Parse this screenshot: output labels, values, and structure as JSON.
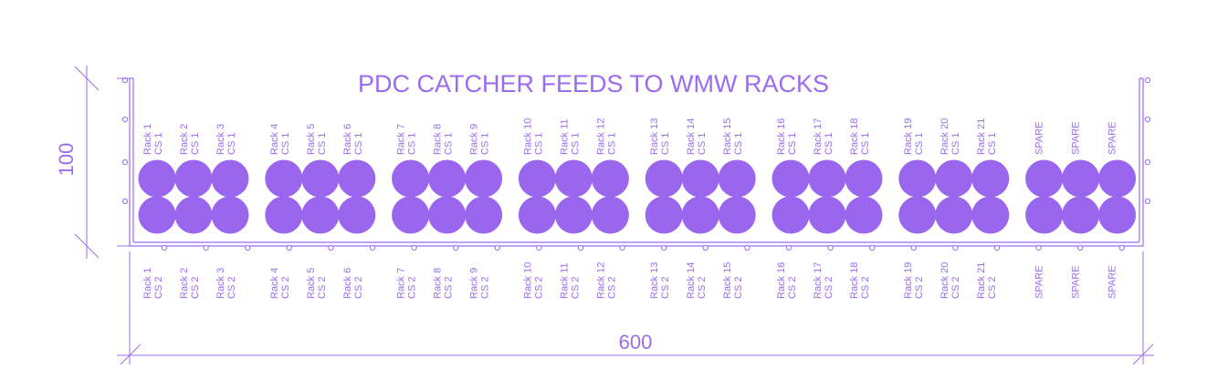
{
  "title": "PDC CATCHER FEEDS TO WMW RACKS",
  "dimensions": {
    "width_label": "600",
    "height_label": "100"
  },
  "colors": {
    "ink": "#9b6cf0",
    "cable_fill": "#9a66ee"
  },
  "groups": [
    {
      "top": [
        [
          "Rack 1",
          "CS 1"
        ],
        [
          "Rack 2",
          "CS 1"
        ],
        [
          "Rack 3",
          "CS 1"
        ]
      ],
      "bottom": [
        [
          "Rack 1",
          "CS 2"
        ],
        [
          "Rack 2",
          "CS 2"
        ],
        [
          "Rack 3",
          "CS 2"
        ]
      ]
    },
    {
      "top": [
        [
          "Rack 4",
          "CS 1"
        ],
        [
          "Rack 5",
          "CS 1"
        ],
        [
          "Rack 6",
          "CS 1"
        ]
      ],
      "bottom": [
        [
          "Rack 4",
          "CS 2"
        ],
        [
          "Rack 5",
          "CS 2"
        ],
        [
          "Rack 6",
          "CS 2"
        ]
      ]
    },
    {
      "top": [
        [
          "Rack 7",
          "CS 1"
        ],
        [
          "Rack 8",
          "CS 1"
        ],
        [
          "Rack 9",
          "CS 1"
        ]
      ],
      "bottom": [
        [
          "Rack 7",
          "CS 2"
        ],
        [
          "Rack 8",
          "CS 2"
        ],
        [
          "Rack 9",
          "CS 2"
        ]
      ]
    },
    {
      "top": [
        [
          "Rack 10",
          "CS 1"
        ],
        [
          "Rack 11",
          "CS 1"
        ],
        [
          "Rack 12",
          "CS 1"
        ]
      ],
      "bottom": [
        [
          "Rack 10",
          "CS 2"
        ],
        [
          "Rack 11",
          "CS 2"
        ],
        [
          "Rack 12",
          "CS 2"
        ]
      ]
    },
    {
      "top": [
        [
          "Rack 13",
          "CS 1"
        ],
        [
          "Rack 14",
          "CS 1"
        ],
        [
          "Rack 15",
          "CS 1"
        ]
      ],
      "bottom": [
        [
          "Rack 13",
          "CS 2"
        ],
        [
          "Rack 14",
          "CS 2"
        ],
        [
          "Rack 15",
          "CS 2"
        ]
      ]
    },
    {
      "top": [
        [
          "Rack 16",
          "CS 1"
        ],
        [
          "Rack 17",
          "CS 1"
        ],
        [
          "Rack 18",
          "CS 1"
        ]
      ],
      "bottom": [
        [
          "Rack 16",
          "CS 2"
        ],
        [
          "Rack 17",
          "CS 2"
        ],
        [
          "Rack 18",
          "CS 2"
        ]
      ]
    },
    {
      "top": [
        [
          "Rack 19",
          "CS 1"
        ],
        [
          "Rack 20",
          "CS 1"
        ],
        [
          "Rack 21",
          "CS 1"
        ]
      ],
      "bottom": [
        [
          "Rack 19",
          "CS 2"
        ],
        [
          "Rack 20",
          "CS 2"
        ],
        [
          "Rack 21",
          "CS 2"
        ]
      ]
    },
    {
      "top": [
        [
          "SPARE"
        ],
        [
          "SPARE"
        ],
        [
          "SPARE"
        ]
      ],
      "bottom": [
        [
          "SPARE"
        ],
        [
          "SPARE"
        ],
        [
          "SPARE"
        ]
      ]
    }
  ]
}
